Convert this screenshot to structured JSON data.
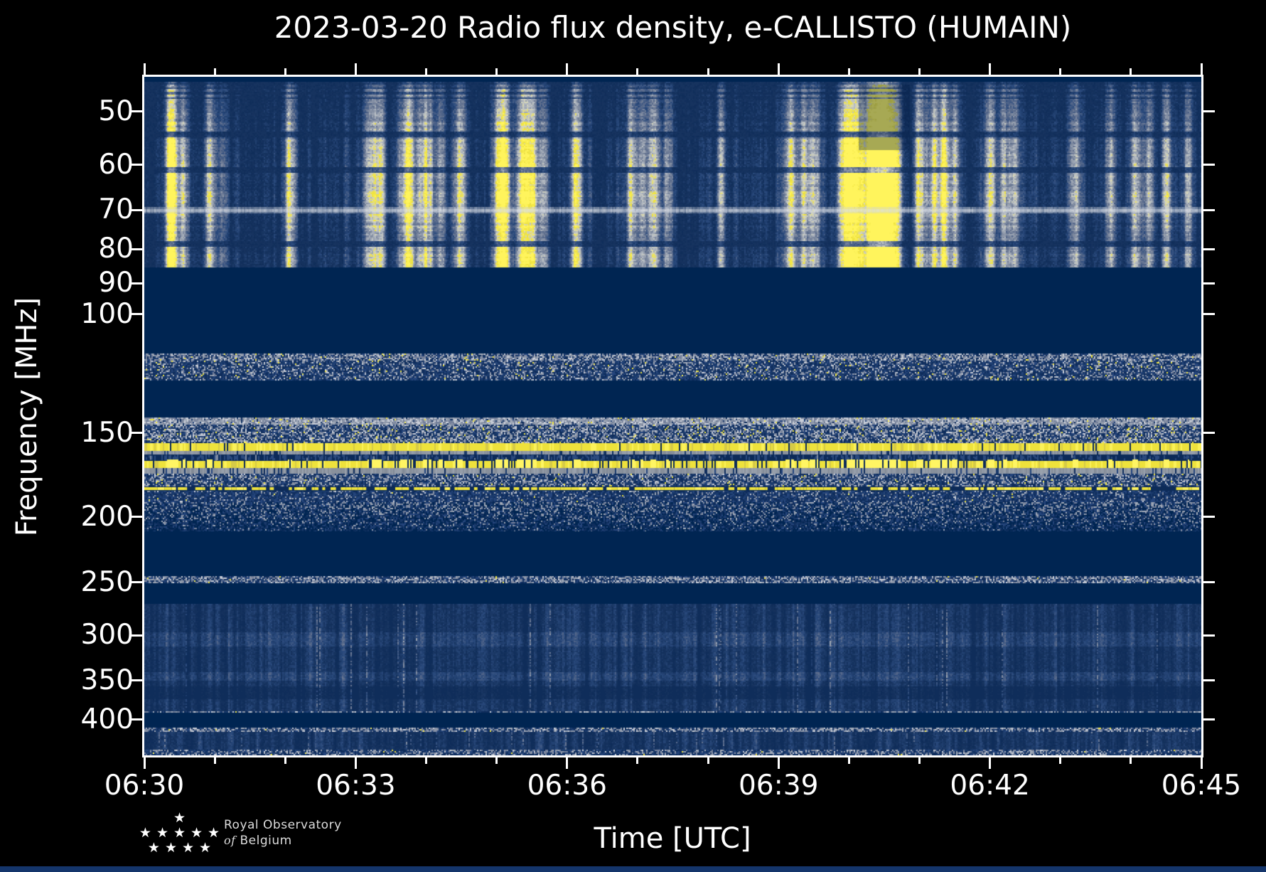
{
  "figure": {
    "title": "2023-03-20 Radio flux density, e-CALLISTO (HUMAIN)",
    "background_color": "#000000",
    "text_color": "#ffffff"
  },
  "axes": {
    "x": {
      "label": "Time [UTC]",
      "start": "06:30",
      "end": "06:45",
      "total_minutes": 15,
      "major_tick_labels": [
        "06:30",
        "06:33",
        "06:36",
        "06:39",
        "06:42",
        "06:45"
      ],
      "major_interval_min": 3,
      "minor_interval_min": 1
    },
    "y": {
      "label": "Frequency [MHz]",
      "scale": "log",
      "direction": "increasing-downward",
      "range_mhz": [
        44.4,
        452
      ],
      "tick_labels": [
        "50",
        "60",
        "70",
        "80",
        "90",
        "100",
        "150",
        "200",
        "250",
        "300",
        "350",
        "400"
      ],
      "tick_values": [
        50,
        60,
        70,
        80,
        90,
        100,
        150,
        200,
        250,
        300,
        350,
        400
      ]
    }
  },
  "logo": {
    "line1": "Royal Observatory",
    "line2_italic": "of",
    "line2": "Belgium",
    "star_rows": [
      1,
      5,
      4
    ],
    "star_glyph": "★",
    "star_color": "#ffffff",
    "text_color": "#dcdcdc"
  },
  "colors": {
    "page_background": "#000000",
    "plot_base_navy": "#16335f",
    "blank_band_navy": "#002552",
    "deep_navy": "#0d2b58",
    "mid_blue": "#24447a",
    "steel_grey": "#7d89a0",
    "light_grey": "#b9c0cb",
    "yellow": "#eee23c",
    "bright_yellow": "#fbf159",
    "spine_white": "#ffffff"
  },
  "chart_data": {
    "type": "heatmap",
    "subtype": "radio-spectrogram",
    "title": "2023-03-20 Radio flux density, e-CALLISTO (HUMAIN)",
    "xlabel": "Time [UTC]",
    "ylabel": "Frequency [MHz]",
    "x_range_utc": [
      "06:30",
      "06:45"
    ],
    "y_range_mhz": [
      44.4,
      452
    ],
    "y_scale": "log",
    "grid": false,
    "legend": "none",
    "colormap_stops": [
      [
        0.0,
        "#0d2b58"
      ],
      [
        0.18,
        "#16335f"
      ],
      [
        0.34,
        "#2a4a7d"
      ],
      [
        0.5,
        "#5f6f8e"
      ],
      [
        0.62,
        "#8d97a9"
      ],
      [
        0.72,
        "#b9bfc6"
      ],
      [
        0.8,
        "#d9d8b8"
      ],
      [
        0.88,
        "#eee23c"
      ],
      [
        1.0,
        "#fff45c"
      ]
    ],
    "bands": [
      {
        "f": [
          44.4,
          45.2
        ],
        "type": "solid",
        "desc": "thin blank strip at top edge"
      },
      {
        "f": [
          45.2,
          85.2
        ],
        "type": "burst",
        "desc": "active band with bright vertical solar burst streaks",
        "grey_line_mhz": 70,
        "dark_rows_mhz": [
          54,
          61,
          78.5
        ]
      },
      {
        "f": [
          85.2,
          114.4
        ],
        "type": "solid",
        "desc": "blanked band (no signal, deep navy)"
      },
      {
        "f": [
          114.4,
          125.4
        ],
        "type": "speckle",
        "pG": 0.22,
        "pL": 0.05,
        "pY": 0.015,
        "topDense": true,
        "desc": "noisy band with sparse yellow dots"
      },
      {
        "f": [
          125.4,
          142.3
        ],
        "type": "solid",
        "desc": "blanked band"
      },
      {
        "f": [
          142.3,
          155.3
        ],
        "type": "speckle",
        "pG": 0.32,
        "pL": 0.1,
        "pY": 0.022,
        "topDense": true,
        "desc": "dense grey speckle band"
      },
      {
        "f": [
          155.3,
          159.6
        ],
        "type": "yellow_line",
        "gapP": 0.05,
        "desc": "continuous bright yellow line ~157 MHz"
      },
      {
        "f": [
          159.6,
          161.5
        ],
        "type": "grey_line",
        "desc": "grey fringe row"
      },
      {
        "f": [
          161.5,
          165.3
        ],
        "type": "dark_streaks",
        "desc": "dark row with vertical dashes"
      },
      {
        "f": [
          165.3,
          169.3
        ],
        "type": "yellow_line",
        "gapP": 0.12,
        "burstBright": true,
        "desc": "second bright yellow band ~167 MHz with streaky structure"
      },
      {
        "f": [
          169.3,
          172.4
        ],
        "type": "grey_line",
        "desc": "grey-blue fringe row"
      },
      {
        "f": [
          172.4,
          180.3
        ],
        "type": "speckle",
        "pG": 0.3,
        "pL": 0.06,
        "pY": 0.01,
        "desc": "speckled band"
      },
      {
        "f": [
          180.3,
          182.8
        ],
        "type": "dashed_yellow",
        "desc": "dashed yellow line ~181 MHz"
      },
      {
        "f": [
          182.8,
          190.3
        ],
        "type": "speckle",
        "pG": 0.13,
        "pL": 0.02,
        "pY": 0.002,
        "desc": "dark speckle band"
      },
      {
        "f": [
          190.3,
          210
        ],
        "type": "speckle_fade",
        "pGtop": 0.3,
        "pGbot": 0.04,
        "desc": "speckle fading into blank band near 200 MHz"
      },
      {
        "f": [
          210,
          245
        ],
        "type": "solid",
        "desc": "blanked band"
      },
      {
        "f": [
          245,
          251
        ],
        "type": "speckle_line",
        "desc": "thin noisy line near 250 MHz"
      },
      {
        "f": [
          251,
          269
        ],
        "type": "solid",
        "desc": "blanked band"
      },
      {
        "f": [
          269,
          389
        ],
        "type": "texture",
        "light_rows_mhz": [
          [
            296,
            311
          ],
          [
            339,
            349
          ]
        ],
        "dark_rows_mhz": [
          [
            356,
            372
          ]
        ],
        "desc": "broad finely-textured blue band 270-390 MHz"
      },
      {
        "f": [
          389,
          391
        ],
        "type": "speckle_line",
        "desc": "thin grey noisy line"
      },
      {
        "f": [
          391,
          411
        ],
        "type": "solid",
        "desc": "blanked band ~400 MHz"
      },
      {
        "f": [
          411,
          417
        ],
        "type": "speckle_line",
        "desc": "thin noisy line"
      },
      {
        "f": [
          417,
          443
        ],
        "type": "texture",
        "light_rows_mhz": [],
        "dark_rows_mhz": [],
        "desc": "textured blue band at bottom"
      },
      {
        "f": [
          443,
          452
        ],
        "type": "speckle",
        "pG": 0.3,
        "pL": 0.05,
        "pY": 0.003,
        "desc": "bottom edge speckle"
      }
    ],
    "bursts_min_after_0630": [
      [
        0.38,
        0.95,
        6
      ],
      [
        0.55,
        0.5,
        5
      ],
      [
        0.92,
        0.55,
        6
      ],
      [
        1.1,
        0.35,
        5
      ],
      [
        2.06,
        0.5,
        6
      ],
      [
        3.2,
        0.55,
        8
      ],
      [
        3.35,
        0.5,
        6
      ],
      [
        3.72,
        0.75,
        9
      ],
      [
        4.0,
        0.6,
        7
      ],
      [
        4.2,
        0.5,
        5
      ],
      [
        4.45,
        0.6,
        7
      ],
      [
        5.07,
        0.95,
        8
      ],
      [
        5.35,
        0.7,
        7
      ],
      [
        5.5,
        0.6,
        6
      ],
      [
        5.65,
        0.45,
        5
      ],
      [
        6.12,
        0.65,
        7
      ],
      [
        6.9,
        0.55,
        6
      ],
      [
        7.05,
        0.45,
        5
      ],
      [
        7.22,
        0.55,
        6
      ],
      [
        7.42,
        0.5,
        5
      ],
      [
        8.18,
        0.45,
        5
      ],
      [
        9.15,
        0.6,
        7
      ],
      [
        9.35,
        0.5,
        5
      ],
      [
        9.5,
        0.6,
        6
      ],
      [
        9.95,
        0.8,
        8
      ],
      [
        10.1,
        0.6,
        6
      ],
      [
        10.33,
        1.0,
        11
      ],
      [
        10.5,
        0.85,
        8
      ],
      [
        10.65,
        0.7,
        7
      ],
      [
        11.0,
        0.6,
        6
      ],
      [
        11.2,
        0.55,
        6
      ],
      [
        11.35,
        0.6,
        6
      ],
      [
        11.5,
        0.5,
        5
      ],
      [
        12.0,
        0.6,
        6
      ],
      [
        12.2,
        0.55,
        5
      ],
      [
        12.35,
        0.5,
        5
      ],
      [
        13.2,
        0.55,
        6
      ],
      [
        13.7,
        0.5,
        5
      ],
      [
        14.05,
        0.6,
        6
      ],
      [
        14.25,
        0.5,
        5
      ],
      [
        14.5,
        0.55,
        6
      ],
      [
        14.8,
        0.5,
        5
      ]
    ],
    "notes": "Dynamic radio spectrum; bright vertical yellow streaks 45-85 MHz, continuous yellow interference lines near 157/167 MHz, blanked navy bands between."
  }
}
